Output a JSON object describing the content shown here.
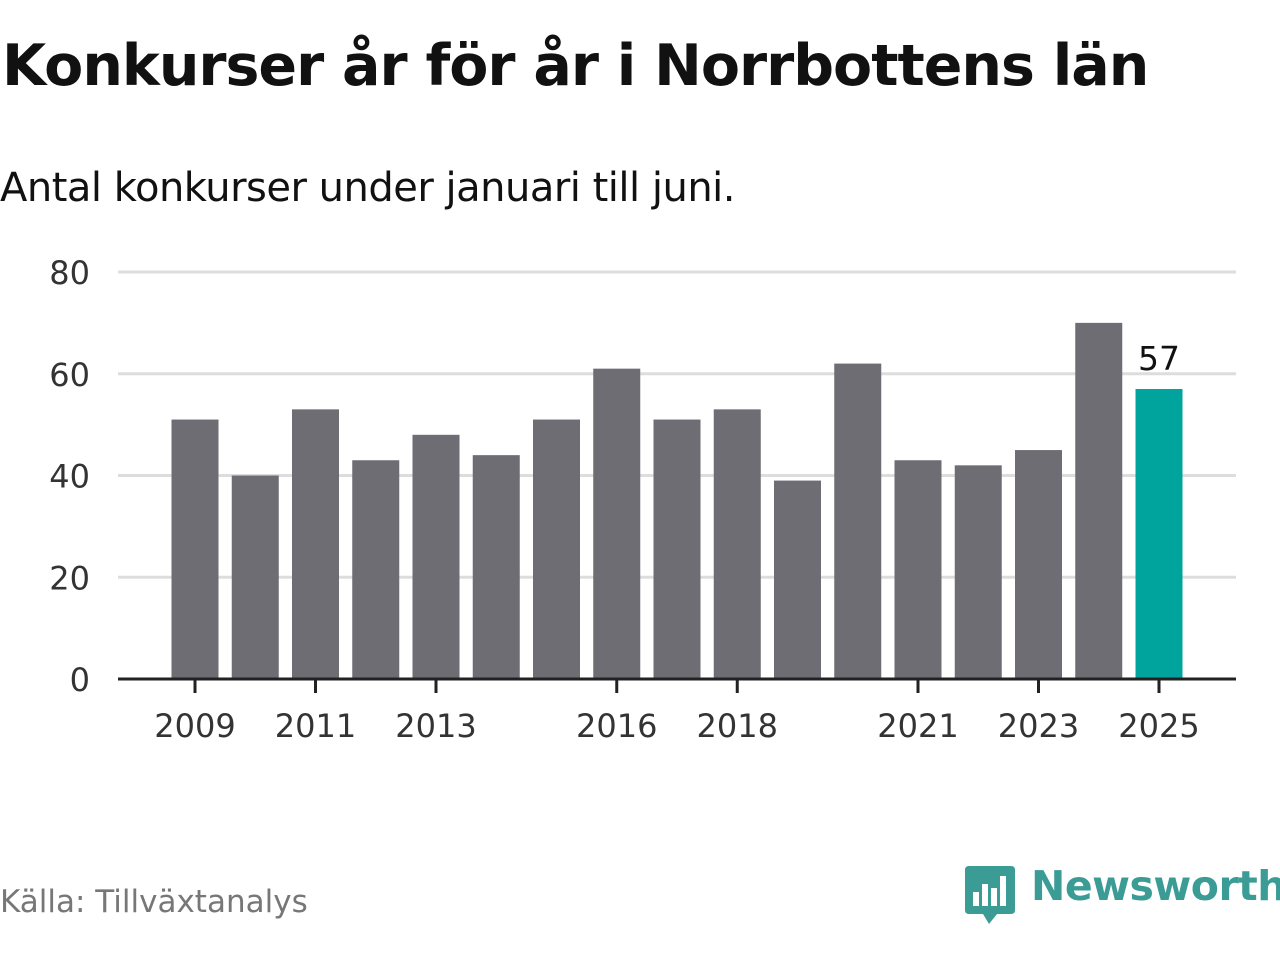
{
  "title": "Konkurser år för år i Norrbottens län",
  "subtitle": "Antal konkurser under januari till juni.",
  "source": "Källa: Tillväxtanalys",
  "brand": {
    "name": "Newsworthy",
    "color": "#3a9c94",
    "icon": "newsworthy-logo-icon"
  },
  "colors": {
    "bar": "#6e6d73",
    "highlight": "#00a49c",
    "grid": "#dddddd",
    "axis": "#222222",
    "tick_text": "#333333"
  },
  "chart_data": {
    "type": "bar",
    "categories": [
      2009,
      2010,
      2011,
      2012,
      2013,
      2014,
      2015,
      2016,
      2017,
      2018,
      2019,
      2020,
      2021,
      2022,
      2023,
      2024,
      2025
    ],
    "values": [
      51,
      40,
      53,
      43,
      48,
      44,
      51,
      61,
      51,
      53,
      39,
      62,
      43,
      42,
      45,
      70,
      57
    ],
    "x_tick_labels": [
      "2009",
      "2011",
      "2013",
      "2016",
      "2018",
      "2021",
      "2023",
      "2025"
    ],
    "y_ticks": [
      0,
      20,
      40,
      60,
      80
    ],
    "ylim": [
      0,
      80
    ],
    "highlight_category": 2025,
    "data_labels": [
      {
        "category": 2025,
        "text": "57"
      }
    ],
    "grid": true,
    "xlabel": "",
    "ylabel": ""
  }
}
